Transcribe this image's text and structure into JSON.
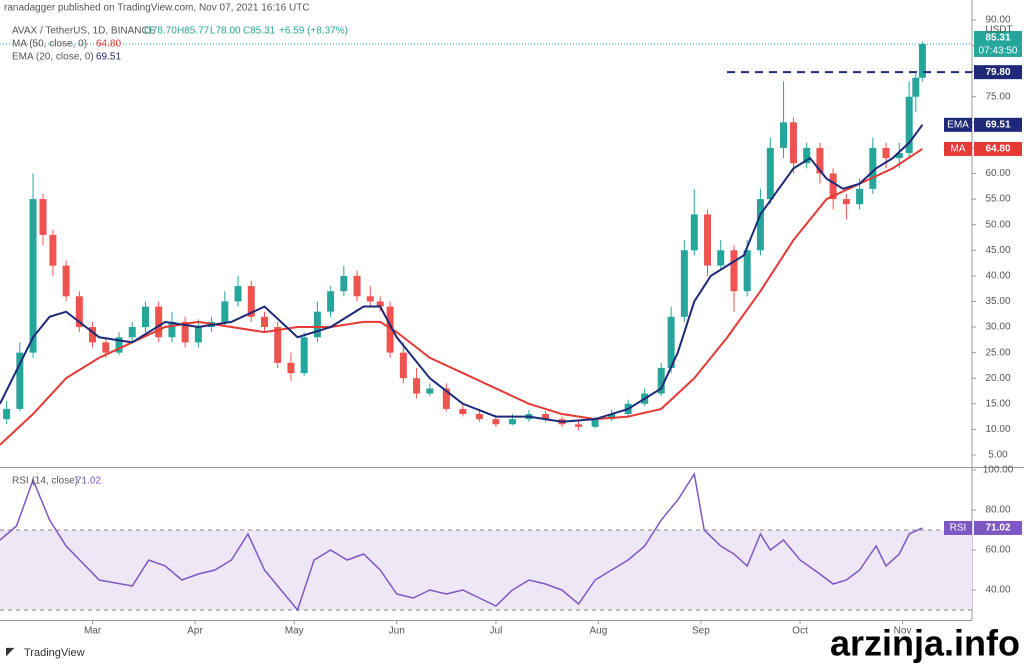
{
  "header": {
    "publisher": "ranadagger published on TradingView.com, Nov 07, 2021 16:16 UTC",
    "symbol": "AVAX / TetherUS, 1D, BINANCE",
    "ohlc": [
      "O78.70",
      "H85.77",
      "L78.00",
      "C85.31"
    ],
    "change": "+6.59 (+8.37%)"
  },
  "footer": {
    "brand": "TradingView",
    "watermark": "arzinja.info"
  },
  "chart_data": [
    {
      "type": "candlestick",
      "currency": "USDT",
      "up_color": "#26a69a",
      "down_color": "#ef5350",
      "xlim": [
        0,
        294
      ],
      "ylim": [
        2.65,
        93.9
      ],
      "yticks": [
        {
          "value": 5,
          "label": "5.00"
        },
        {
          "value": 10,
          "label": "10.00"
        },
        {
          "value": 15,
          "label": "15.00"
        },
        {
          "value": 20,
          "label": "20.00"
        },
        {
          "value": 25,
          "label": "25.00"
        },
        {
          "value": 30,
          "label": "30.00"
        },
        {
          "value": 35,
          "label": "35.00"
        },
        {
          "value": 40,
          "label": "40.00"
        },
        {
          "value": 45,
          "label": "45.00"
        },
        {
          "value": 50,
          "label": "50.00"
        },
        {
          "value": 55,
          "label": "55.00"
        },
        {
          "value": 60,
          "label": "60.00"
        },
        {
          "value": 65,
          "label": "65.00"
        },
        {
          "value": 70,
          "label": "70.00"
        },
        {
          "value": 75,
          "label": "75.00"
        },
        {
          "value": 80,
          "label": "80.00"
        },
        {
          "value": 85,
          "label": "85.00"
        },
        {
          "value": 90,
          "label": "90.00"
        }
      ],
      "x": [
        2,
        6,
        10,
        13,
        16,
        20,
        24,
        28,
        32,
        36,
        40,
        44,
        48,
        52,
        56,
        60,
        64,
        68,
        72,
        76,
        80,
        84,
        88,
        92,
        96,
        100,
        104,
        108,
        112,
        115,
        118,
        122,
        126,
        130,
        135,
        140,
        145,
        150,
        155,
        160,
        165,
        170,
        175,
        180,
        185,
        190,
        195,
        200,
        203,
        207,
        210,
        214,
        218,
        222,
        226,
        230,
        233,
        237,
        240,
        244,
        248,
        252,
        256,
        260,
        264,
        268,
        272,
        275,
        277,
        279
      ],
      "open": [
        12,
        14,
        25,
        55,
        48,
        42,
        36,
        30,
        27,
        25,
        28,
        30,
        34,
        28,
        31,
        27,
        30,
        31,
        35,
        38,
        32,
        30,
        23,
        21,
        28,
        33,
        37,
        40,
        36,
        35,
        34,
        25,
        20,
        17,
        18,
        14,
        13,
        12,
        11,
        12,
        13,
        12,
        11,
        10.5,
        12,
        13,
        15,
        17,
        22,
        32,
        45,
        52,
        42,
        45,
        37,
        45,
        55,
        65,
        70,
        62,
        65,
        60,
        55,
        54,
        57,
        65,
        63,
        64,
        75,
        78.7
      ],
      "high": [
        15.5,
        27,
        60,
        56,
        49,
        43,
        37,
        31,
        28,
        29,
        31,
        35,
        35,
        33,
        32,
        31.5,
        32,
        37,
        40,
        39,
        33,
        31,
        25,
        29,
        35,
        38,
        42,
        41,
        38,
        36,
        35,
        27,
        22,
        19,
        19,
        15,
        14,
        12.8,
        13,
        13.8,
        13.6,
        12.5,
        11.6,
        12.5,
        13.8,
        15.8,
        18,
        23,
        34,
        47,
        57,
        53,
        47,
        46,
        47,
        57,
        67,
        78,
        71,
        66,
        66,
        61,
        56,
        59,
        67,
        66,
        66,
        78,
        79.5,
        85.77
      ],
      "low": [
        11,
        13.5,
        24,
        46,
        40,
        35,
        29,
        26,
        24,
        24.5,
        27,
        29,
        27,
        27,
        26,
        26,
        29,
        30,
        34,
        31,
        29,
        22,
        19.5,
        20.5,
        27,
        32,
        36,
        35,
        34,
        33,
        24,
        19,
        16,
        16.5,
        13.5,
        12.5,
        11.5,
        10.5,
        10.8,
        11.5,
        11.5,
        10.5,
        9.8,
        10.2,
        11.6,
        12.5,
        14.5,
        16.5,
        21,
        31,
        44,
        40,
        41,
        33,
        36,
        44,
        54,
        63,
        60,
        61,
        58,
        53,
        51,
        53,
        56,
        61,
        61,
        63,
        72,
        78
      ],
      "close": [
        14,
        25,
        55,
        48,
        42,
        36,
        30,
        27,
        25,
        28,
        30,
        34,
        28,
        31,
        27,
        30,
        31,
        35,
        38,
        32,
        30,
        23,
        21,
        28,
        33,
        37,
        40,
        36,
        35,
        34,
        25,
        20,
        17,
        18,
        14,
        13,
        12,
        11,
        12,
        13,
        12,
        11,
        10.5,
        12,
        13,
        15,
        17,
        22,
        32,
        45,
        52,
        42,
        45,
        37,
        45,
        55,
        65,
        70,
        62,
        65,
        60,
        55,
        54,
        57,
        65,
        63,
        64,
        75,
        78.7,
        85.31
      ],
      "last_price": {
        "value": 85.31,
        "label": "85.31"
      },
      "countdown": "07:43:50",
      "hline": {
        "value": 79.8,
        "label": "79.80",
        "color": "#1e2a78"
      },
      "overlays": [
        {
          "name": "MA",
          "legend": "MA (50, close, 0)",
          "color": "#e53935",
          "last": {
            "value": 64.8,
            "label": "64.80"
          },
          "x": [
            0,
            10,
            20,
            30,
            40,
            50,
            60,
            70,
            80,
            90,
            100,
            110,
            115,
            120,
            130,
            140,
            150,
            160,
            170,
            180,
            190,
            200,
            210,
            220,
            230,
            240,
            250,
            260,
            270,
            279
          ],
          "values": [
            7,
            13,
            20,
            24,
            27,
            30,
            31,
            30,
            29,
            30,
            30,
            31,
            31,
            29,
            24,
            21,
            18,
            15,
            13,
            12,
            12.5,
            14,
            20,
            28,
            37,
            47,
            55,
            58,
            61,
            64.8
          ]
        },
        {
          "name": "EMA",
          "legend": "EMA (20, close, 0)",
          "color": "#1e2a78",
          "last": {
            "value": 69.51,
            "label": "69.51"
          },
          "x": [
            0,
            10,
            15,
            20,
            30,
            40,
            50,
            60,
            70,
            80,
            90,
            100,
            110,
            115,
            120,
            130,
            140,
            150,
            160,
            170,
            180,
            190,
            200,
            205,
            210,
            215,
            220,
            225,
            230,
            240,
            245,
            250,
            255,
            260,
            265,
            270,
            275,
            279
          ],
          "values": [
            15,
            28,
            32,
            33,
            28,
            27,
            31,
            30,
            31,
            34,
            28,
            30,
            34,
            34,
            28,
            20,
            15,
            12.5,
            12.5,
            11.5,
            12,
            14,
            18,
            25,
            35,
            40,
            42,
            44,
            52,
            61,
            63,
            59,
            57,
            58,
            61,
            63,
            66,
            69.51
          ]
        }
      ]
    },
    {
      "type": "line",
      "legend": "RSI (14, close)",
      "xlim": [
        0,
        294
      ],
      "ylim": [
        25,
        100.5
      ],
      "yticks": [
        {
          "value": 40,
          "label": "40.00"
        },
        {
          "value": 60,
          "label": "60.00"
        },
        {
          "value": 80,
          "label": "80.00"
        },
        {
          "value": 100,
          "label": "100.00"
        }
      ],
      "xticks": [
        {
          "value": 28,
          "label": "Mar"
        },
        {
          "value": 59,
          "label": "Apr"
        },
        {
          "value": 89,
          "label": "May"
        },
        {
          "value": 120,
          "label": "Jun"
        },
        {
          "value": 150,
          "label": "Jul"
        },
        {
          "value": 181,
          "label": "Aug"
        },
        {
          "value": 212,
          "label": "Sep"
        },
        {
          "value": 242,
          "label": "Oct"
        },
        {
          "value": 273,
          "label": "Nov"
        }
      ],
      "levels": [
        30,
        70
      ],
      "band_color": "#ede7f6",
      "series": [
        {
          "name": "RSI",
          "color": "#7e57c2",
          "last": {
            "value": 71.02,
            "label": "71.02"
          },
          "x": [
            0,
            5,
            10,
            15,
            20,
            30,
            40,
            45,
            50,
            55,
            60,
            65,
            70,
            75,
            80,
            85,
            90,
            95,
            100,
            105,
            110,
            115,
            120,
            125,
            130,
            135,
            140,
            145,
            150,
            155,
            160,
            165,
            170,
            175,
            180,
            185,
            190,
            195,
            200,
            205,
            210,
            213,
            218,
            222,
            226,
            230,
            233,
            237,
            242,
            248,
            252,
            256,
            260,
            265,
            268,
            272,
            275,
            279
          ],
          "values": [
            65,
            72,
            95,
            75,
            62,
            45,
            42,
            55,
            52,
            45,
            48,
            50,
            55,
            68,
            50,
            40,
            30,
            55,
            60,
            55,
            58,
            50,
            38,
            36,
            40,
            38,
            40,
            36,
            32,
            40,
            45,
            43,
            40,
            33,
            45,
            50,
            55,
            62,
            75,
            85,
            98,
            70,
            62,
            58,
            52,
            68,
            60,
            65,
            55,
            48,
            43,
            45,
            50,
            62,
            52,
            58,
            68,
            71.02
          ]
        }
      ]
    }
  ]
}
